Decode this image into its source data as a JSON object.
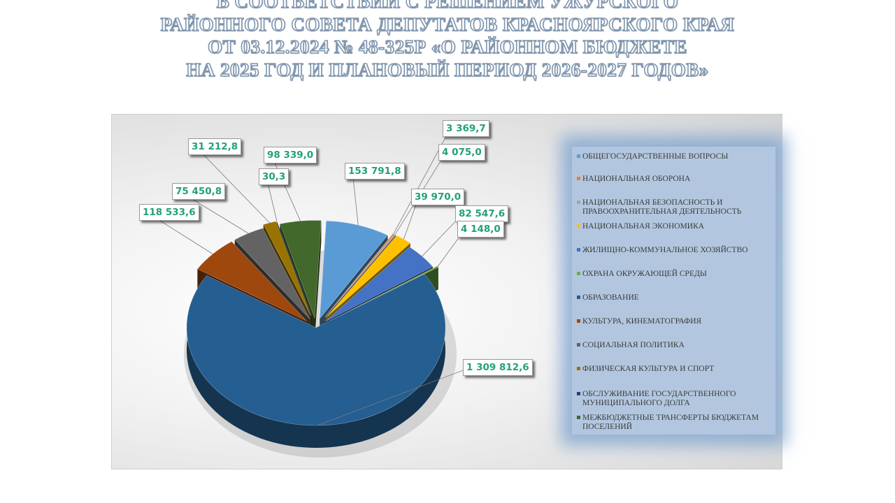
{
  "title_lines": [
    "В СООТВЕТСТВИИ С РЕШЕНИЕМ УЖУРСКОГО",
    "РАЙОННОГО СОВЕТА ДЕПУТАТОВ КРАСНОЯРСКОГО КРАЯ",
    "ОТ 03.12.2024 № 48-325Р «О РАЙОННОМ БЮДЖЕТЕ",
    "НА 2025 ГОД И ПЛАНОВЫЙ ПЕРИОД 2026-2027 ГОДОВ»"
  ],
  "chart_data": {
    "type": "pie",
    "style": "3d-exploded",
    "legend_position": "right",
    "slices": [
      {
        "name": "ОБЩЕГОСУДАРСТВЕННЫЕ ВОПРОСЫ",
        "value": 153791.8,
        "label": "153 791,8",
        "color": "#5b9bd5"
      },
      {
        "name": "НАЦИОНАЛЬНАЯ ОБОРОНА",
        "value": 3369.7,
        "label": "3 369,7",
        "color": "#ed7d31"
      },
      {
        "name": "НАЦИОНАЛЬНАЯ БЕЗОПАСНОСТЬ И ПРАВООХРАНИТЕЛЬНАЯ ДЕЯТЕЛЬНОСТЬ",
        "value": 4075.0,
        "label": "4 075,0",
        "color": "#a5a5a5"
      },
      {
        "name": "НАЦИОНАЛЬНАЯ ЭКОНОМИКА",
        "value": 39970.0,
        "label": "39 970,0",
        "color": "#ffc000"
      },
      {
        "name": "ЖИЛИЩНО-КОММУНАЛЬНОЕ ХОЗЯЙСТВО",
        "value": 82547.6,
        "label": "82 547,6",
        "color": "#4472c4"
      },
      {
        "name": "ОХРАНА ОКРУЖАЮЩЕЙ СРЕДЫ",
        "value": 4148.0,
        "label": "4 148,0",
        "color": "#70ad47"
      },
      {
        "name": "ОБРАЗОВАНИЕ",
        "value": 1309812.6,
        "label": "1 309 812,6",
        "color": "#255e91"
      },
      {
        "name": "КУЛЬТУРА, КИНЕМАТОГРАФИЯ",
        "value": 118533.6,
        "label": "118 533,6",
        "color": "#9e480e"
      },
      {
        "name": "СОЦИАЛЬНАЯ ПОЛИТИКА",
        "value": 75450.8,
        "label": "75 450,8",
        "color": "#636363"
      },
      {
        "name": "ФИЗИЧЕСКАЯ КУЛЬТУРА И СПОРТ",
        "value": 31212.8,
        "label": "31 212,8",
        "color": "#997300"
      },
      {
        "name": "ОБСЛУЖИВАНИЕ ГОСУДАРСТВЕННОГО МУНИЦИПАЛЬНОГО ДОЛГА",
        "value": 30.3,
        "label": "30,3",
        "color": "#264478"
      },
      {
        "name": "МЕЖБЮДЖЕТНЫЕ ТРАНСФЕРТЫ БЮДЖЕТАМ ПОСЕЛЕНИЙ",
        "value": 98339.0,
        "label": "98 339,0",
        "color": "#43682b"
      }
    ]
  }
}
